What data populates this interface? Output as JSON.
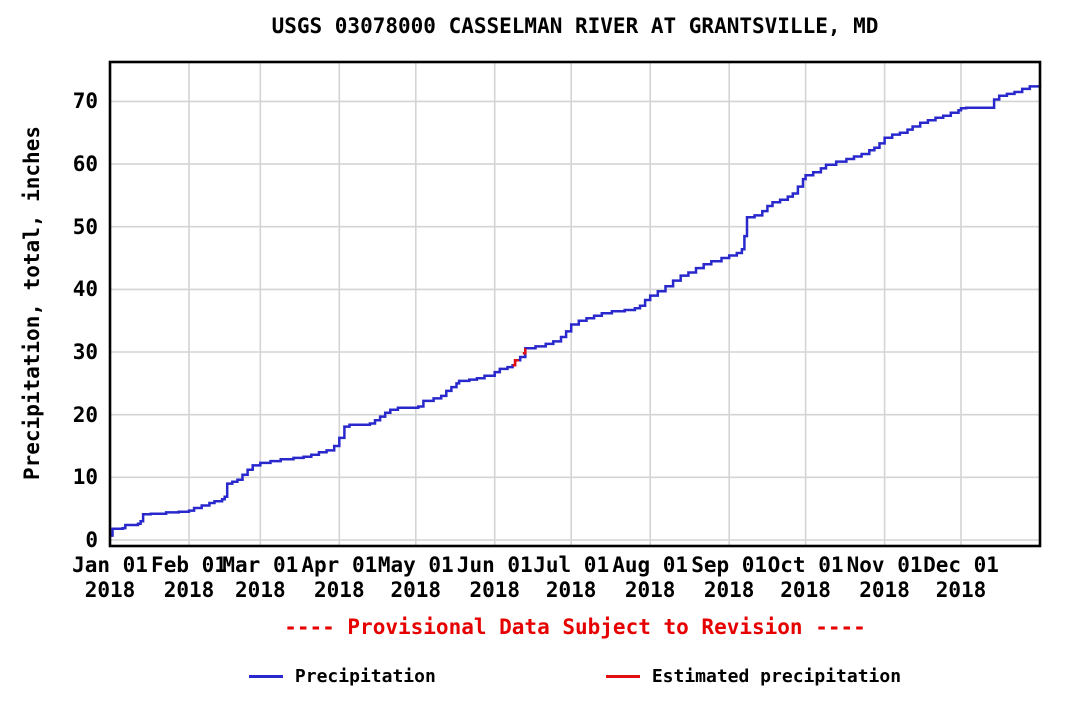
{
  "title": "USGS 03078000 CASSELMAN RIVER AT GRANTSVILLE, MD",
  "provisional_note": "---- Provisional Data Subject to Revision ----",
  "colors": {
    "precipitation_line": "#2828cc",
    "estimated_line": "#e01010",
    "provisional_text": "#e60000",
    "grid": "#d4d4d4",
    "frame": "#000000",
    "text": "#000000",
    "background": "#ffffff"
  },
  "legend": [
    {
      "label": "Precipitation",
      "color": "#2828cc"
    },
    {
      "label": "Estimated precipitation",
      "color": "#e01010"
    }
  ],
  "chart_data": {
    "type": "line",
    "step": true,
    "title": "USGS 03078000 CASSELMAN RIVER AT GRANTSVILLE, MD",
    "xlabel": "",
    "ylabel": "Precipitation, total, inches",
    "grid": true,
    "legend_position": "bottom",
    "ylim": [
      0,
      76
    ],
    "yticks": [
      0,
      10,
      20,
      30,
      40,
      50,
      60,
      70
    ],
    "x_domain_days": [
      0,
      365
    ],
    "xticks": [
      {
        "day": 0,
        "label": "Jan 01",
        "year": "2018"
      },
      {
        "day": 31,
        "label": "Feb 01",
        "year": "2018"
      },
      {
        "day": 59,
        "label": "Mar 01",
        "year": "2018"
      },
      {
        "day": 90,
        "label": "Apr 01",
        "year": "2018"
      },
      {
        "day": 120,
        "label": "May 01",
        "year": "2018"
      },
      {
        "day": 151,
        "label": "Jun 01",
        "year": "2018"
      },
      {
        "day": 181,
        "label": "Jul 01",
        "year": "2018"
      },
      {
        "day": 212,
        "label": "Aug 01",
        "year": "2018"
      },
      {
        "day": 243,
        "label": "Sep 01",
        "year": "2018"
      },
      {
        "day": 273,
        "label": "Oct 01",
        "year": "2018"
      },
      {
        "day": 304,
        "label": "Nov 01",
        "year": "2018"
      },
      {
        "day": 334,
        "label": "Dec 01",
        "year": "2018"
      }
    ],
    "series": [
      {
        "name": "Precipitation",
        "color": "#2828cc",
        "units": "inches (cumulative total)",
        "points": [
          [
            0,
            0.7
          ],
          [
            1,
            1.8
          ],
          [
            5,
            1.9
          ],
          [
            6,
            2.4
          ],
          [
            11,
            2.6
          ],
          [
            12,
            3.0
          ],
          [
            13,
            4.1
          ],
          [
            16,
            4.2
          ],
          [
            22,
            4.4
          ],
          [
            27,
            4.5
          ],
          [
            31,
            4.7
          ],
          [
            33,
            5.1
          ],
          [
            36,
            5.5
          ],
          [
            39,
            5.9
          ],
          [
            41,
            6.2
          ],
          [
            44,
            6.5
          ],
          [
            45,
            6.9
          ],
          [
            46,
            9.0
          ],
          [
            48,
            9.3
          ],
          [
            50,
            9.6
          ],
          [
            52,
            10.4
          ],
          [
            54,
            11.2
          ],
          [
            56,
            11.9
          ],
          [
            59,
            12.3
          ],
          [
            63,
            12.6
          ],
          [
            67,
            12.9
          ],
          [
            72,
            13.1
          ],
          [
            76,
            13.3
          ],
          [
            79,
            13.6
          ],
          [
            82,
            14.0
          ],
          [
            85,
            14.3
          ],
          [
            88,
            15.0
          ],
          [
            90,
            16.3
          ],
          [
            92,
            18.1
          ],
          [
            94,
            18.4
          ],
          [
            102,
            18.6
          ],
          [
            104,
            19.1
          ],
          [
            106,
            19.7
          ],
          [
            108,
            20.3
          ],
          [
            110,
            20.8
          ],
          [
            113,
            21.1
          ],
          [
            121,
            21.3
          ],
          [
            123,
            22.2
          ],
          [
            127,
            22.6
          ],
          [
            130,
            23.0
          ],
          [
            132,
            23.8
          ],
          [
            134,
            24.4
          ],
          [
            136,
            25.0
          ],
          [
            137,
            25.4
          ],
          [
            141,
            25.6
          ],
          [
            144,
            25.8
          ],
          [
            147,
            26.2
          ],
          [
            151,
            26.8
          ],
          [
            153,
            27.3
          ],
          [
            156,
            27.6
          ],
          [
            158,
            27.9
          ],
          [
            159,
            28.7
          ],
          [
            161,
            29.2
          ],
          [
            163,
            30.6
          ],
          [
            167,
            30.9
          ],
          [
            171,
            31.3
          ],
          [
            174,
            31.7
          ],
          [
            177,
            32.4
          ],
          [
            179,
            33.3
          ],
          [
            181,
            34.4
          ],
          [
            184,
            35.0
          ],
          [
            187,
            35.4
          ],
          [
            190,
            35.8
          ],
          [
            193,
            36.2
          ],
          [
            197,
            36.5
          ],
          [
            202,
            36.7
          ],
          [
            206,
            37.0
          ],
          [
            208,
            37.4
          ],
          [
            210,
            38.3
          ],
          [
            212,
            39.0
          ],
          [
            215,
            39.7
          ],
          [
            218,
            40.5
          ],
          [
            221,
            41.4
          ],
          [
            224,
            42.2
          ],
          [
            227,
            42.7
          ],
          [
            230,
            43.4
          ],
          [
            233,
            44.0
          ],
          [
            236,
            44.5
          ],
          [
            240,
            45.0
          ],
          [
            243,
            45.4
          ],
          [
            246,
            45.8
          ],
          [
            248,
            46.4
          ],
          [
            249,
            48.5
          ],
          [
            250,
            51.5
          ],
          [
            253,
            51.8
          ],
          [
            256,
            52.5
          ],
          [
            258,
            53.3
          ],
          [
            260,
            53.9
          ],
          [
            263,
            54.3
          ],
          [
            266,
            54.8
          ],
          [
            268,
            55.3
          ],
          [
            270,
            56.4
          ],
          [
            272,
            57.6
          ],
          [
            273,
            58.2
          ],
          [
            276,
            58.7
          ],
          [
            279,
            59.3
          ],
          [
            281,
            59.9
          ],
          [
            285,
            60.4
          ],
          [
            289,
            60.8
          ],
          [
            292,
            61.2
          ],
          [
            295,
            61.6
          ],
          [
            298,
            62.2
          ],
          [
            300,
            62.6
          ],
          [
            302,
            63.3
          ],
          [
            304,
            64.2
          ],
          [
            307,
            64.7
          ],
          [
            310,
            65.0
          ],
          [
            313,
            65.5
          ],
          [
            315,
            66.0
          ],
          [
            318,
            66.6
          ],
          [
            321,
            67.0
          ],
          [
            324,
            67.4
          ],
          [
            327,
            67.7
          ],
          [
            330,
            68.2
          ],
          [
            333,
            68.6
          ],
          [
            334,
            68.9
          ],
          [
            336,
            69.0
          ],
          [
            346,
            69.0
          ],
          [
            347,
            70.3
          ],
          [
            349,
            70.9
          ],
          [
            352,
            71.2
          ],
          [
            355,
            71.5
          ],
          [
            358,
            72.0
          ],
          [
            361,
            72.4
          ],
          [
            365,
            72.7
          ]
        ]
      },
      {
        "name": "Estimated precipitation",
        "color": "#e01010",
        "units": "inches (cumulative total)",
        "segments": [
          [
            [
              158,
              27.9
            ],
            [
              159,
              28.7
            ],
            [
              160,
              28.8
            ]
          ],
          [
            [
              162,
              29.8
            ],
            [
              163,
              30.6
            ]
          ]
        ]
      }
    ]
  }
}
